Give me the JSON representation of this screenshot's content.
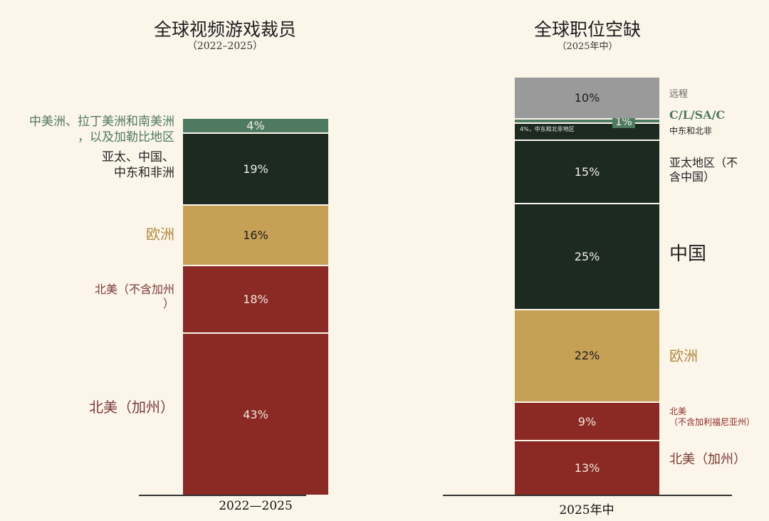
{
  "chart_data": [
    {
      "type": "bar",
      "stacked": true,
      "title": "全球视频游戏裁员",
      "subtitle": "（2022–2025）",
      "categories": [
        "2022—2025"
      ],
      "segments": [
        {
          "name": "北美（加州）",
          "value": 43,
          "label": "43%",
          "color": "#8b2a24",
          "label_color": "#7a3a35",
          "text_color": "#f1e6df"
        },
        {
          "name": "北美（不含加州\n）",
          "value": 18,
          "label": "18%",
          "color": "#8b2a24",
          "label_color": "#7a3a35",
          "text_color": "#f1e6df"
        },
        {
          "name": "欧洲",
          "value": 16,
          "label": "16%",
          "color": "#c6a055",
          "label_color": "#b08a40",
          "text_color": "#1c1c1c"
        },
        {
          "name": "亚太、中国、\n中东和非洲",
          "value": 19,
          "label": "19%",
          "color": "#1c2a22",
          "label_color": "#222222",
          "text_color": "#f1efe8"
        },
        {
          "name": "中美洲、拉丁美洲和南美洲\n，以及加勒比地区",
          "value": 4,
          "label": "4%",
          "color": "#4f7a62",
          "label_color": "#4f7a62",
          "text_color": "#f1efe8"
        }
      ]
    },
    {
      "type": "bar",
      "stacked": true,
      "title": "全球职位空缺",
      "subtitle": "（2025年中）",
      "categories": [
        "2025年中"
      ],
      "segments": [
        {
          "name": "北美（加州）",
          "value": 13,
          "label": "13%",
          "color": "#8b2a24",
          "label_color": "#7a3a35",
          "text_color": "#f1e6df"
        },
        {
          "name": "北美\n（不含加利福尼亚州）",
          "value": 9,
          "label": "9%",
          "color": "#8b2a24",
          "label_color": "#8b2a24",
          "text_color": "#f1e6df"
        },
        {
          "name": "欧洲",
          "value": 22,
          "label": "22%",
          "color": "#c6a055",
          "label_color": "#b08a40",
          "text_color": "#1c1c1c"
        },
        {
          "name": "中国",
          "value": 25,
          "label": "25%",
          "color": "#1c2a22",
          "label_color": "#222222",
          "text_color": "#f1efe8"
        },
        {
          "name": "亚太地区（不\n含中国）",
          "value": 15,
          "label": "15%",
          "color": "#1c2a22",
          "label_color": "#222222",
          "text_color": "#f1efe8"
        },
        {
          "name": "中东和北非",
          "value": 4,
          "label": "4%，中东和北非地区",
          "color": "#1c2a22",
          "label_color": "#222222",
          "text_color": "#e8e8e8"
        },
        {
          "name": "C/L/SA/C",
          "value": 1,
          "label": "1%",
          "color": "#4f7a62",
          "label_color": "#4f7a62",
          "text_color": "#f1efe8"
        },
        {
          "name": "远程",
          "value": 10,
          "label": "10%",
          "color": "#9a9a9a",
          "label_color": "#666666",
          "text_color": "#1c1c1c"
        }
      ]
    }
  ]
}
